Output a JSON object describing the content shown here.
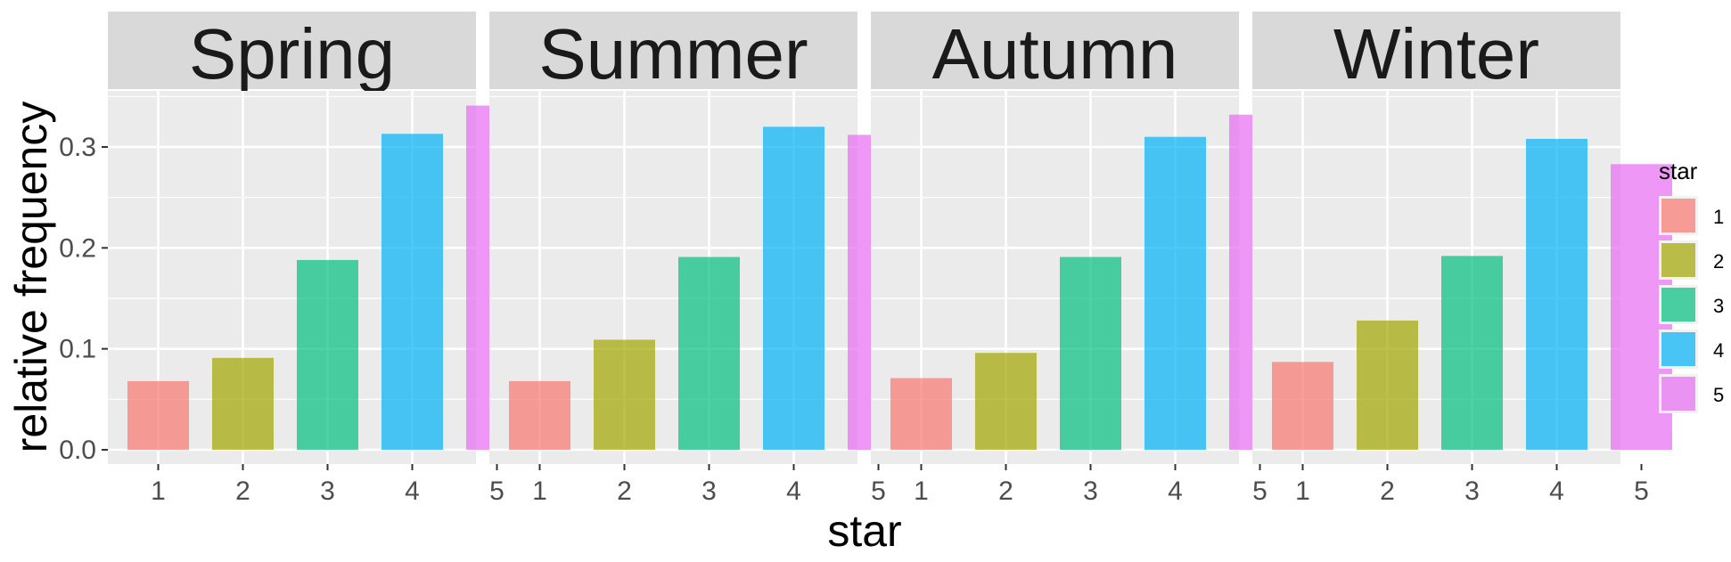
{
  "chart_data": {
    "type": "bar",
    "facets": [
      "Spring",
      "Summer",
      "Autumn",
      "Winter"
    ],
    "categories": [
      "1",
      "2",
      "3",
      "4",
      "5"
    ],
    "panels": [
      {
        "facet": "Spring",
        "values": [
          0.068,
          0.091,
          0.188,
          0.313,
          0.341
        ]
      },
      {
        "facet": "Summer",
        "values": [
          0.068,
          0.109,
          0.191,
          0.32,
          0.312
        ]
      },
      {
        "facet": "Autumn",
        "values": [
          0.071,
          0.096,
          0.191,
          0.31,
          0.332
        ]
      },
      {
        "facet": "Winter",
        "values": [
          0.087,
          0.128,
          0.192,
          0.308,
          0.283
        ]
      }
    ],
    "xlabel": "star",
    "ylabel": "relative frequency",
    "ylim": [
      0,
      0.35
    ],
    "yticks": [
      0.0,
      0.1,
      0.2,
      0.3
    ],
    "ytick_labels": [
      "0.0",
      "0.1",
      "0.2",
      "0.3"
    ],
    "legend": {
      "title": "star",
      "entries": [
        "1",
        "2",
        "3",
        "4",
        "5"
      ],
      "position": "right"
    },
    "colors": [
      "#F8766D",
      "#A3A500",
      "#00BF7D",
      "#00B0F6",
      "#E76BF3"
    ],
    "bar_opacity": 0.7,
    "grid": true
  }
}
